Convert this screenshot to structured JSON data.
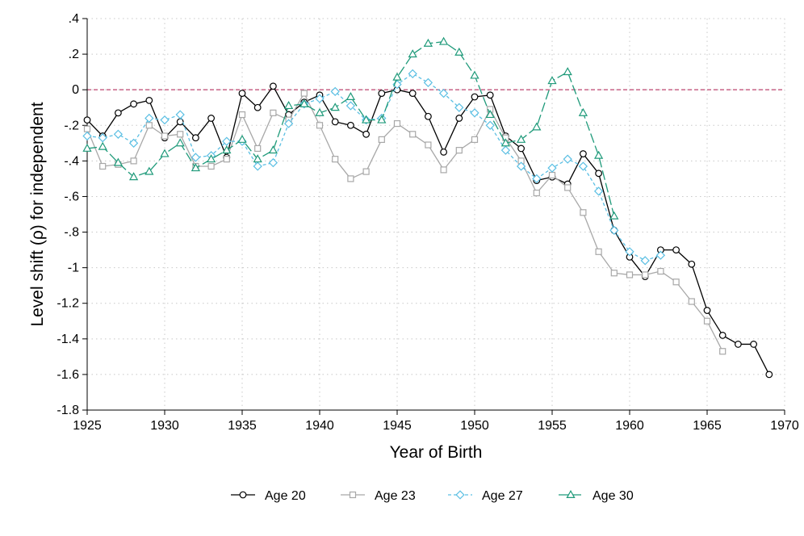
{
  "chart_data": {
    "type": "line",
    "title": "",
    "xlabel": "Year of Birth",
    "ylabel": "Level shift (ρ) for independent",
    "xlim": [
      1925,
      1970
    ],
    "ylim": [
      -1.8,
      0.4
    ],
    "xticks": [
      1925,
      1930,
      1935,
      1940,
      1945,
      1950,
      1955,
      1960,
      1965,
      1970
    ],
    "yticks": [
      0.4,
      0.2,
      0,
      -0.2,
      -0.4,
      -0.6,
      -0.8,
      -1,
      -1.2,
      -1.4,
      -1.6,
      -1.8
    ],
    "ytick_labels": [
      ".4",
      ".2",
      "0",
      "-.2",
      "-.4",
      "-.6",
      "-.8",
      "-1",
      "-1.2",
      "-1.4",
      "-1.6",
      "-1.8"
    ],
    "grid": true,
    "reference_line": {
      "y": 0,
      "color": "#cc6f8f",
      "style": "dashed"
    },
    "legend_position": "bottom",
    "series": [
      {
        "name": "Age 20",
        "color": "#000000",
        "marker": "circle",
        "dash": "",
        "x": [
          1925,
          1926,
          1927,
          1928,
          1929,
          1930,
          1931,
          1932,
          1933,
          1934,
          1935,
          1936,
          1937,
          1938,
          1939,
          1940,
          1941,
          1942,
          1943,
          1944,
          1945,
          1946,
          1947,
          1948,
          1949,
          1950,
          1951,
          1952,
          1953,
          1954,
          1955,
          1956,
          1957,
          1958,
          1959,
          1960,
          1961,
          1962,
          1963,
          1964,
          1965,
          1966,
          1967,
          1968,
          1969
        ],
        "values": [
          -0.17,
          -0.26,
          -0.13,
          -0.08,
          -0.06,
          -0.27,
          -0.18,
          -0.27,
          -0.16,
          -0.38,
          -0.02,
          -0.1,
          0.02,
          -0.14,
          -0.07,
          -0.03,
          -0.18,
          -0.2,
          -0.25,
          -0.02,
          0.0,
          -0.02,
          -0.15,
          -0.35,
          -0.16,
          -0.04,
          -0.03,
          -0.26,
          -0.33,
          -0.51,
          -0.49,
          -0.53,
          -0.36,
          -0.47,
          -0.79,
          -0.94,
          -1.05,
          -0.9,
          -0.9,
          -0.98,
          -1.24,
          -1.38,
          -1.43,
          -1.43,
          -1.6
        ]
      },
      {
        "name": "Age 23",
        "color": "#a8a8a8",
        "marker": "square",
        "dash": "",
        "x": [
          1925,
          1926,
          1927,
          1928,
          1929,
          1930,
          1931,
          1932,
          1933,
          1934,
          1935,
          1936,
          1937,
          1938,
          1939,
          1940,
          1941,
          1942,
          1943,
          1944,
          1945,
          1946,
          1947,
          1948,
          1949,
          1950,
          1951,
          1952,
          1953,
          1954,
          1955,
          1956,
          1957,
          1958,
          1959,
          1960,
          1961,
          1962,
          1963,
          1964,
          1965,
          1966
        ],
        "values": [
          -0.22,
          -0.43,
          -0.42,
          -0.4,
          -0.2,
          -0.26,
          -0.25,
          -0.43,
          -0.43,
          -0.39,
          -0.14,
          -0.33,
          -0.13,
          -0.17,
          -0.02,
          -0.2,
          -0.39,
          -0.5,
          -0.46,
          -0.28,
          -0.19,
          -0.25,
          -0.31,
          -0.45,
          -0.34,
          -0.28,
          -0.11,
          -0.27,
          -0.4,
          -0.58,
          -0.48,
          -0.55,
          -0.69,
          -0.91,
          -1.03,
          -1.04,
          -1.04,
          -1.02,
          -1.08,
          -1.19,
          -1.3,
          -1.47
        ]
      },
      {
        "name": "Age 27",
        "color": "#5bbfe3",
        "marker": "diamond",
        "dash": "4 3",
        "x": [
          1925,
          1926,
          1927,
          1928,
          1929,
          1930,
          1931,
          1932,
          1933,
          1934,
          1935,
          1936,
          1937,
          1938,
          1939,
          1940,
          1941,
          1942,
          1943,
          1944,
          1945,
          1946,
          1947,
          1948,
          1949,
          1950,
          1951,
          1952,
          1953,
          1954,
          1955,
          1956,
          1957,
          1958,
          1959,
          1960,
          1961,
          1962
        ],
        "values": [
          -0.26,
          -0.27,
          -0.25,
          -0.3,
          -0.16,
          -0.17,
          -0.14,
          -0.38,
          -0.37,
          -0.29,
          -0.29,
          -0.43,
          -0.41,
          -0.19,
          -0.08,
          -0.05,
          -0.01,
          -0.09,
          -0.17,
          -0.16,
          0.03,
          0.09,
          0.04,
          -0.02,
          -0.1,
          -0.13,
          -0.2,
          -0.34,
          -0.43,
          -0.5,
          -0.44,
          -0.39,
          -0.43,
          -0.57,
          -0.79,
          -0.91,
          -0.96,
          -0.93
        ]
      },
      {
        "name": "Age 30",
        "color": "#1f9a7a",
        "marker": "triangle",
        "dash": "12 4",
        "x": [
          1925,
          1926,
          1927,
          1928,
          1929,
          1930,
          1931,
          1932,
          1933,
          1934,
          1935,
          1936,
          1937,
          1938,
          1939,
          1940,
          1941,
          1942,
          1943,
          1944,
          1945,
          1946,
          1947,
          1948,
          1949,
          1950,
          1951,
          1952,
          1953,
          1954,
          1955,
          1956,
          1957,
          1958,
          1959
        ],
        "values": [
          -0.33,
          -0.32,
          -0.41,
          -0.49,
          -0.46,
          -0.36,
          -0.3,
          -0.44,
          -0.39,
          -0.34,
          -0.28,
          -0.39,
          -0.34,
          -0.09,
          -0.08,
          -0.13,
          -0.1,
          -0.04,
          -0.17,
          -0.17,
          0.07,
          0.2,
          0.26,
          0.27,
          0.21,
          0.08,
          -0.14,
          -0.3,
          -0.28,
          -0.21,
          0.05,
          0.1,
          -0.13,
          -0.37,
          -0.71
        ]
      }
    ]
  }
}
